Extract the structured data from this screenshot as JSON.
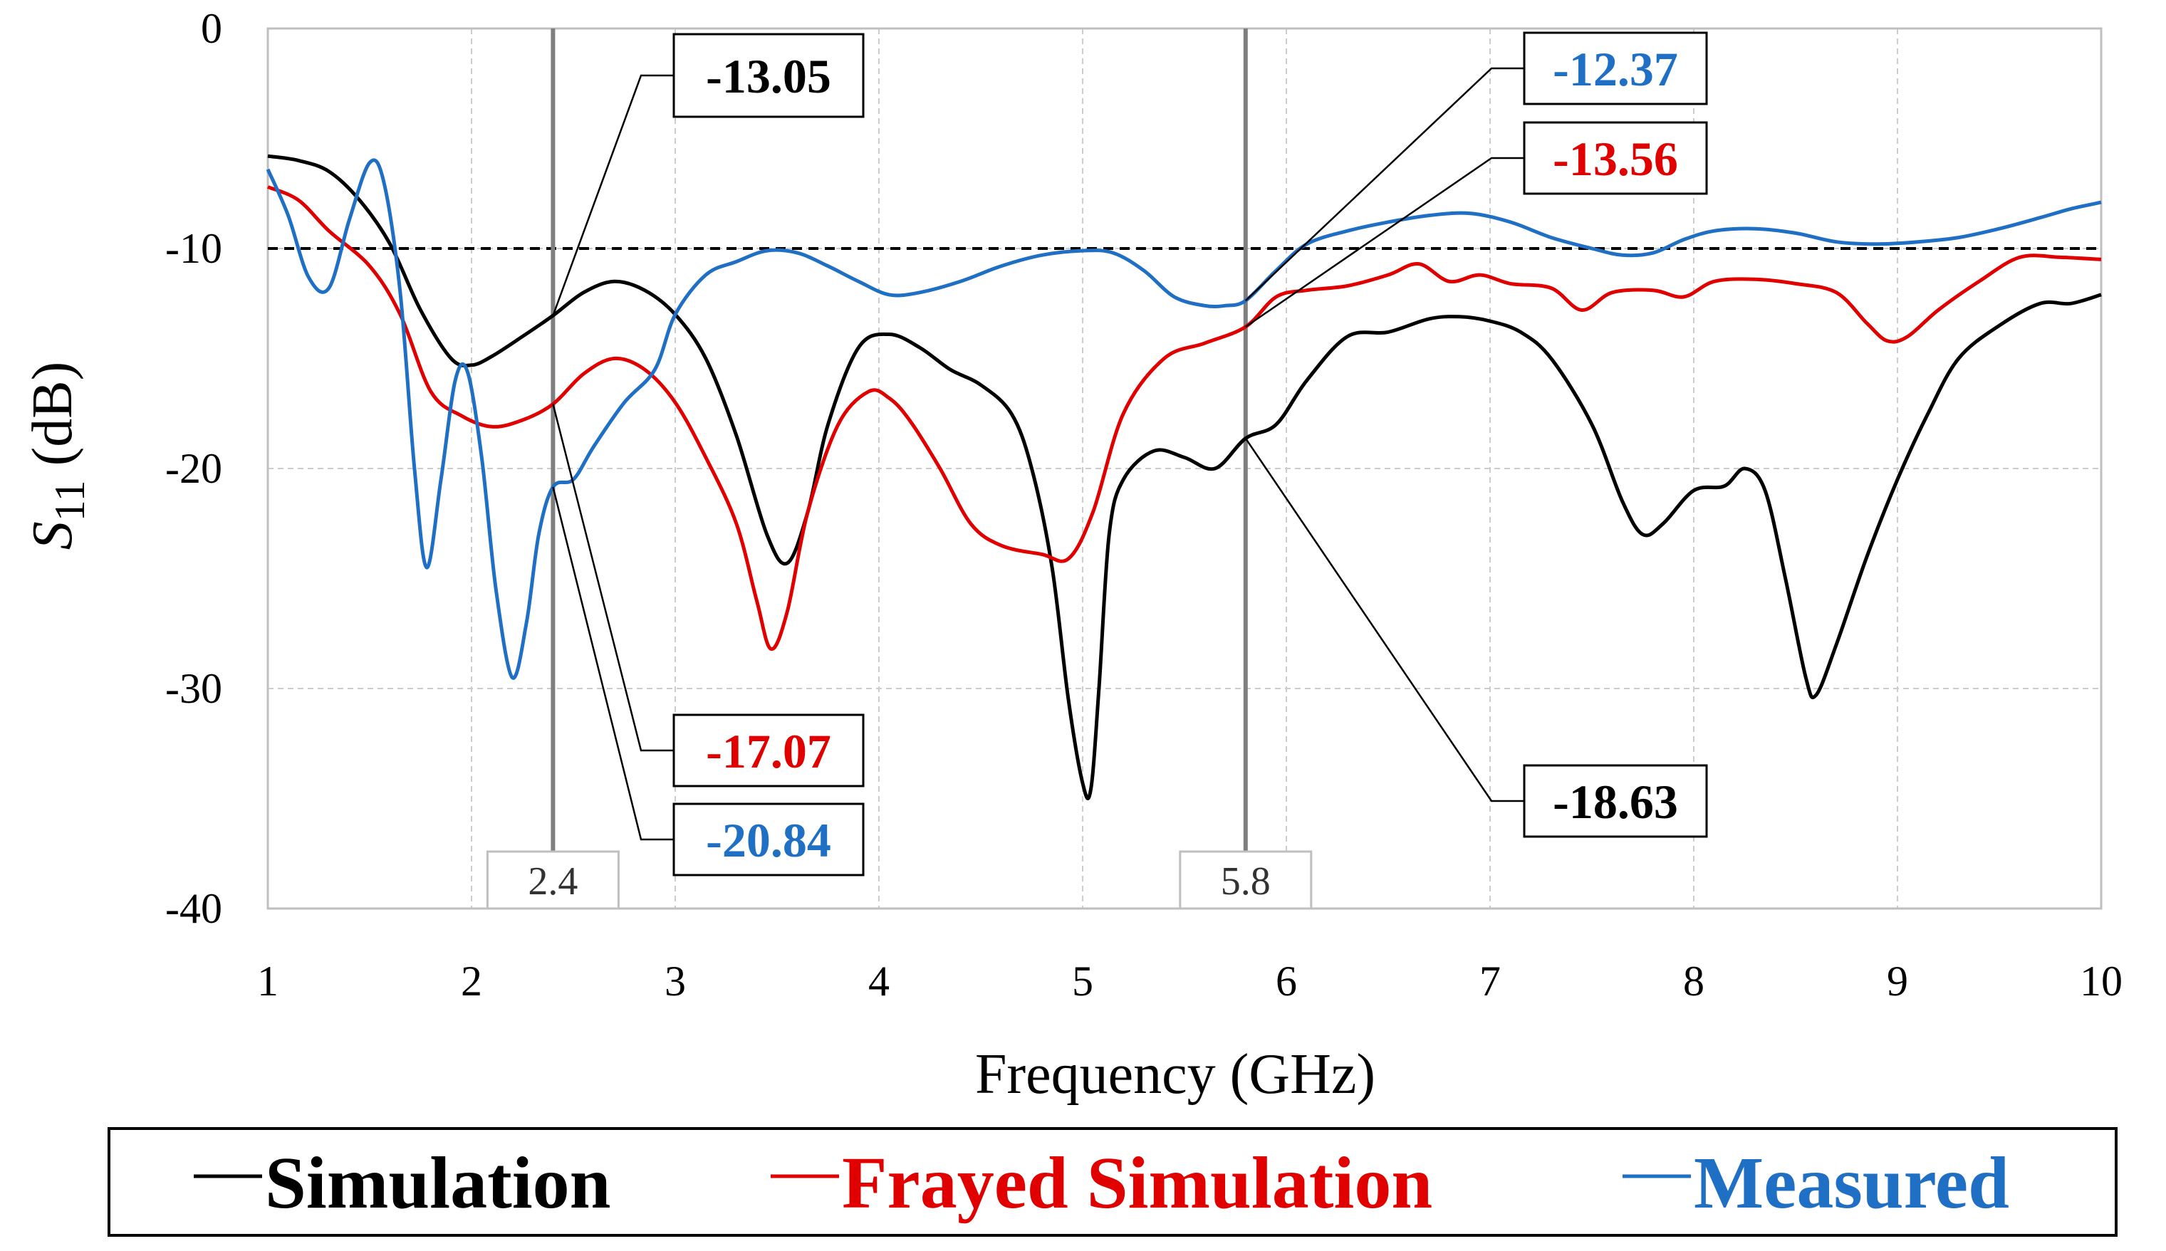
{
  "chart_data": {
    "type": "line",
    "title": "",
    "xlabel": "Frequency (GHz)",
    "ylabel_main": "S",
    "ylabel_sub": "11",
    "ylabel_unit": " (dB)",
    "xlim": [
      1,
      10
    ],
    "ylim": [
      -40,
      0
    ],
    "xticks": [
      1,
      2,
      3,
      4,
      5,
      6,
      7,
      8,
      9,
      10
    ],
    "yticks": [
      0,
      -10,
      -20,
      -30,
      -40
    ],
    "xtick_labels": [
      "1",
      "2",
      "3",
      "4",
      "5",
      "6",
      "7",
      "8",
      "9",
      "10"
    ],
    "ytick_labels": [
      "0",
      "-10",
      "-20",
      "-30",
      "-40"
    ],
    "grid": true,
    "threshold": -10,
    "markers": [
      {
        "x": 2.4,
        "label": "2.4"
      },
      {
        "x": 5.8,
        "label": "5.8"
      }
    ],
    "series": [
      {
        "name": "Simulation",
        "color": "#000000",
        "x": [
          1.0,
          1.15,
          1.3,
          1.45,
          1.6,
          1.75,
          1.9,
          2.0,
          2.1,
          2.25,
          2.4,
          2.55,
          2.7,
          2.85,
          3.0,
          3.15,
          3.3,
          3.45,
          3.55,
          3.65,
          3.75,
          3.9,
          4.05,
          4.2,
          4.35,
          4.5,
          4.65,
          4.75,
          4.85,
          4.93,
          5.0,
          5.04,
          5.08,
          5.13,
          5.2,
          5.35,
          5.5,
          5.65,
          5.8,
          5.95,
          6.1,
          6.3,
          6.5,
          6.7,
          6.85,
          7.0,
          7.15,
          7.3,
          7.5,
          7.65,
          7.75,
          7.85,
          8.0,
          8.15,
          8.25,
          8.35,
          8.45,
          8.55,
          8.6,
          8.7,
          8.85,
          9.0,
          9.15,
          9.3,
          9.5,
          9.7,
          9.85,
          10.0
        ],
        "values": [
          -5.8,
          -6.0,
          -6.5,
          -7.8,
          -9.8,
          -12.8,
          -15.0,
          -15.3,
          -14.9,
          -14.0,
          -13.05,
          -12.0,
          -11.5,
          -11.9,
          -13.0,
          -15.0,
          -18.5,
          -23.0,
          -24.3,
          -22.0,
          -18.0,
          -14.5,
          -13.9,
          -14.5,
          -15.5,
          -16.2,
          -17.5,
          -20.0,
          -24.5,
          -30.5,
          -34.3,
          -34.6,
          -30.0,
          -23.0,
          -20.5,
          -19.2,
          -19.5,
          -20.0,
          -18.63,
          -18.0,
          -16.0,
          -14.0,
          -13.8,
          -13.2,
          -13.1,
          -13.3,
          -13.8,
          -15.0,
          -18.0,
          -21.5,
          -23.0,
          -22.5,
          -21.0,
          -20.8,
          -20.0,
          -21.0,
          -25.0,
          -29.5,
          -30.3,
          -28.0,
          -24.0,
          -20.5,
          -17.5,
          -15.0,
          -13.5,
          -12.5,
          -12.5,
          -12.1
        ]
      },
      {
        "name": "Frayed Simulation",
        "color": "#e00000",
        "x": [
          1.0,
          1.15,
          1.3,
          1.5,
          1.65,
          1.8,
          1.95,
          2.1,
          2.25,
          2.4,
          2.55,
          2.7,
          2.85,
          3.0,
          3.15,
          3.3,
          3.4,
          3.47,
          3.55,
          3.65,
          3.8,
          3.95,
          4.05,
          4.15,
          4.3,
          4.45,
          4.6,
          4.8,
          4.93,
          5.05,
          5.2,
          5.4,
          5.6,
          5.8,
          5.95,
          6.1,
          6.3,
          6.5,
          6.65,
          6.8,
          6.95,
          7.1,
          7.3,
          7.45,
          7.6,
          7.8,
          7.95,
          8.1,
          8.3,
          8.5,
          8.7,
          8.85,
          8.95,
          9.05,
          9.2,
          9.4,
          9.6,
          9.8,
          10.0
        ],
        "values": [
          -7.2,
          -7.8,
          -9.2,
          -10.8,
          -13.0,
          -16.5,
          -17.6,
          -18.1,
          -17.8,
          -17.07,
          -15.7,
          -15.0,
          -15.5,
          -17.0,
          -19.5,
          -22.5,
          -26.0,
          -28.2,
          -26.5,
          -22.0,
          -18.0,
          -16.5,
          -16.8,
          -17.8,
          -20.0,
          -22.5,
          -23.5,
          -23.9,
          -24.1,
          -22.0,
          -17.5,
          -15.0,
          -14.3,
          -13.56,
          -12.2,
          -11.9,
          -11.7,
          -11.2,
          -10.7,
          -11.5,
          -11.2,
          -11.6,
          -11.8,
          -12.8,
          -12.0,
          -11.9,
          -12.2,
          -11.5,
          -11.4,
          -11.6,
          -12.0,
          -13.4,
          -14.2,
          -14.0,
          -12.8,
          -11.5,
          -10.4,
          -10.4,
          -10.5
        ]
      },
      {
        "name": "Measured",
        "color": "#1f6fc4",
        "x": [
          1.0,
          1.1,
          1.2,
          1.3,
          1.4,
          1.5,
          1.57,
          1.65,
          1.72,
          1.78,
          1.85,
          1.92,
          1.98,
          2.05,
          2.12,
          2.2,
          2.27,
          2.33,
          2.4,
          2.5,
          2.6,
          2.75,
          2.9,
          3.0,
          3.15,
          3.3,
          3.45,
          3.6,
          3.75,
          3.9,
          4.05,
          4.2,
          4.4,
          4.6,
          4.8,
          5.0,
          5.15,
          5.3,
          5.45,
          5.6,
          5.7,
          5.8,
          5.95,
          6.1,
          6.3,
          6.5,
          6.7,
          6.9,
          7.1,
          7.3,
          7.5,
          7.65,
          7.8,
          7.95,
          8.1,
          8.3,
          8.5,
          8.7,
          8.9,
          9.1,
          9.3,
          9.5,
          9.7,
          9.85,
          10.0
        ],
        "values": [
          -6.4,
          -8.5,
          -11.3,
          -11.8,
          -8.7,
          -6.1,
          -7.0,
          -12.0,
          -20.0,
          -24.5,
          -20.5,
          -16.0,
          -15.6,
          -19.5,
          -25.5,
          -29.5,
          -27.0,
          -23.0,
          -20.84,
          -20.5,
          -19.0,
          -17.0,
          -15.5,
          -13.0,
          -11.2,
          -10.6,
          -10.1,
          -10.2,
          -10.8,
          -11.5,
          -12.1,
          -12.0,
          -11.5,
          -10.8,
          -10.3,
          -10.1,
          -10.2,
          -11.0,
          -12.2,
          -12.6,
          -12.6,
          -12.37,
          -11.0,
          -9.8,
          -9.2,
          -8.8,
          -8.5,
          -8.4,
          -8.8,
          -9.5,
          -10.0,
          -10.3,
          -10.2,
          -9.6,
          -9.2,
          -9.1,
          -9.3,
          -9.7,
          -9.8,
          -9.7,
          -9.5,
          -9.1,
          -8.6,
          -8.2,
          -7.9
        ]
      }
    ],
    "annotations": [
      {
        "text": "-13.05",
        "series": "Simulation",
        "color": "#000000",
        "x": 2.4,
        "y": -13.05
      },
      {
        "text": "-17.07",
        "series": "Frayed Simulation",
        "color": "#e00000",
        "x": 2.4,
        "y": -17.07
      },
      {
        "text": "-20.84",
        "series": "Measured",
        "color": "#1f6fc4",
        "x": 2.4,
        "y": -20.84
      },
      {
        "text": "-12.37",
        "series": "Measured",
        "color": "#1f6fc4",
        "x": 5.8,
        "y": -12.37
      },
      {
        "text": "-13.56",
        "series": "Frayed Simulation",
        "color": "#e00000",
        "x": 5.8,
        "y": -13.56
      },
      {
        "text": "-18.63",
        "series": "Simulation",
        "color": "#000000",
        "x": 5.8,
        "y": -18.63
      }
    ],
    "legend": {
      "position": "bottom",
      "entries": [
        {
          "label": "Simulation",
          "color": "#000000"
        },
        {
          "label": "Frayed Simulation",
          "color": "#e00000"
        },
        {
          "label": "Measured",
          "color": "#1f6fc4"
        }
      ]
    }
  }
}
